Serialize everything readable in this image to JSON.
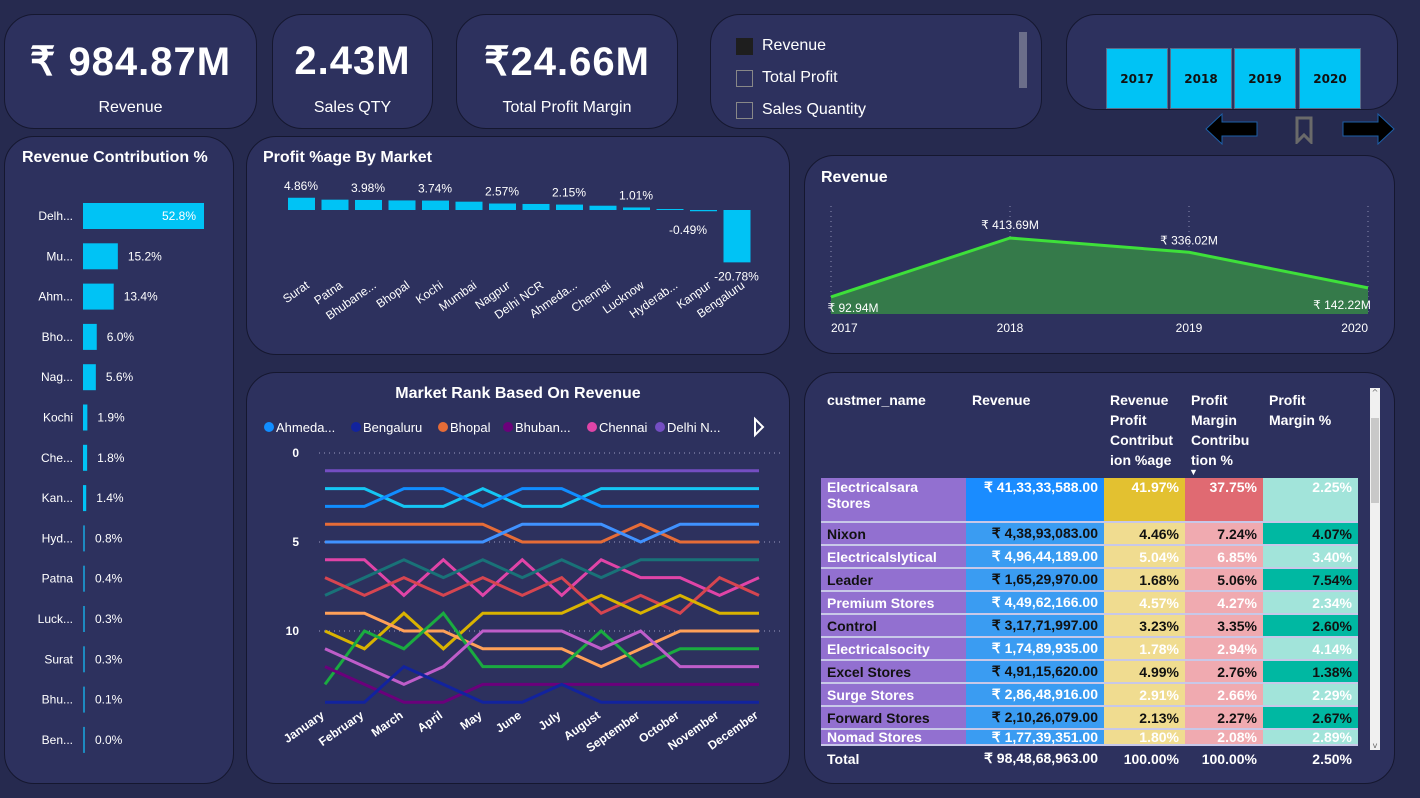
{
  "kpis": [
    {
      "value": "₹ 984.87M",
      "label": "Revenue"
    },
    {
      "value": "2.43M",
      "label": "Sales QTY"
    },
    {
      "value": "₹24.66M",
      "label": "Total Profit Margin"
    }
  ],
  "measure_slicer": {
    "items": [
      {
        "label": "Revenue",
        "checked": true
      },
      {
        "label": "Total Profit",
        "checked": false
      },
      {
        "label": "Sales Quantity",
        "checked": false
      }
    ]
  },
  "year_slicer": {
    "years": [
      "2017",
      "2018",
      "2019",
      "2020"
    ],
    "color": "#00c3f5"
  },
  "nav": {
    "back": "arrow-left-icon",
    "bookmark": "bookmark-icon",
    "forward": "arrow-right-icon"
  },
  "chart_data": [
    {
      "type": "bar",
      "orientation": "horizontal",
      "title": "Revenue Contribution %",
      "categories": [
        "Delh...",
        "Mu...",
        "Ahm...",
        "Bho...",
        "Nag...",
        "Kochi",
        "Che...",
        "Kan...",
        "Hyd...",
        "Patna",
        "Luck...",
        "Surat",
        "Bhu...",
        "Ben..."
      ],
      "values": [
        52.8,
        15.2,
        13.4,
        6.0,
        5.6,
        1.9,
        1.8,
        1.4,
        0.8,
        0.4,
        0.3,
        0.3,
        0.1,
        0.0
      ],
      "labels": [
        "52.8%",
        "15.2%",
        "13.4%",
        "6.0%",
        "5.6%",
        "1.9%",
        "1.8%",
        "1.4%",
        "0.8%",
        "0.4%",
        "0.3%",
        "0.3%",
        "0.1%",
        "0.0%"
      ],
      "color": "#00c3f5"
    },
    {
      "type": "bar",
      "title": "Profit %age By Market",
      "categories": [
        "Surat",
        "Patna",
        "Bhubane...",
        "Bhopal",
        "Kochi",
        "Mumbai",
        "Nagpur",
        "Delhi NCR",
        "Ahmeda...",
        "Chennai",
        "Lucknow",
        "Hyderab...",
        "Kanpur",
        "Bengaluru"
      ],
      "values": [
        4.86,
        4.1,
        3.98,
        3.8,
        3.74,
        3.3,
        2.57,
        2.4,
        2.15,
        1.7,
        1.01,
        0.4,
        -0.49,
        -20.78
      ],
      "labels": [
        "4.86%",
        "",
        "3.98%",
        "",
        "3.74%",
        "",
        "2.57%",
        "",
        "2.15%",
        "",
        "1.01%",
        "",
        "-0.49%",
        "-20.78%"
      ],
      "color": "#00c3f5"
    },
    {
      "type": "area",
      "title": "Revenue",
      "categories": [
        "2017",
        "2018",
        "2019",
        "2020"
      ],
      "values": [
        92.94,
        413.69,
        336.02,
        142.22
      ],
      "labels": [
        "₹ 92.94M",
        "₹ 413.69M",
        "₹ 336.02M",
        "₹ 142.22M"
      ],
      "ylim": [
        0,
        580
      ],
      "line_color": "#3ee03a",
      "fill_color": "#357a4a",
      "grid": "vertical-dotted"
    },
    {
      "type": "line",
      "title": "Market Rank Based On Revenue",
      "categories": [
        "January",
        "February",
        "March",
        "April",
        "May",
        "June",
        "July",
        "August",
        "September",
        "October",
        "November",
        "December"
      ],
      "yticks": [
        "0",
        "5",
        "10"
      ],
      "ylim": [
        0,
        14
      ],
      "y_reversed": true,
      "legend": [
        "Ahmeda...",
        "Bengaluru",
        "Bhopal",
        "Bhuban...",
        "Chennai",
        "Delhi N..."
      ],
      "series": [
        {
          "name": "Delhi NCR",
          "color": "#744ec2",
          "values": [
            1,
            1,
            1,
            1,
            1,
            1,
            1,
            1,
            1,
            1,
            1,
            1
          ]
        },
        {
          "color": "#15c6f4",
          "values": [
            2,
            2,
            3,
            3,
            2,
            3,
            3,
            2,
            2,
            2,
            2,
            2
          ]
        },
        {
          "name": "Ahmedabad",
          "color": "#118dff",
          "values": [
            3,
            3,
            2,
            2,
            3,
            2,
            2,
            3,
            3,
            3,
            3,
            3
          ]
        },
        {
          "name": "Bhopal",
          "color": "#e66c37",
          "values": [
            4,
            4,
            4,
            4,
            4,
            5,
            5,
            5,
            4,
            5,
            5,
            5
          ]
        },
        {
          "color": "#4092ff",
          "values": [
            5,
            5,
            5,
            5,
            5,
            4,
            4,
            4,
            5,
            4,
            4,
            4
          ]
        },
        {
          "name": "Chennai",
          "color": "#e044a7",
          "values": [
            6,
            6,
            8,
            6,
            8,
            6,
            8,
            6,
            7,
            7,
            8,
            7
          ]
        },
        {
          "color": "#197278",
          "values": [
            8,
            7,
            6,
            7,
            6,
            7,
            6,
            7,
            6,
            6,
            6,
            6
          ]
        },
        {
          "color": "#d64550",
          "values": [
            7,
            8,
            7,
            8,
            7,
            8,
            7,
            9,
            8,
            9,
            7,
            8
          ]
        },
        {
          "color": "#d9b300",
          "values": [
            10,
            11,
            9,
            11,
            9,
            9,
            9,
            8,
            9,
            8,
            9,
            9
          ]
        },
        {
          "color": "#ffa058",
          "values": [
            9,
            9,
            10,
            10,
            11,
            11,
            11,
            12,
            11,
            10,
            10,
            10
          ]
        },
        {
          "color": "#1aab40",
          "values": [
            13,
            10,
            11,
            9,
            12,
            12,
            12,
            10,
            12,
            11,
            11,
            11
          ]
        },
        {
          "color": "#be5dc9",
          "values": [
            11,
            12,
            13,
            12,
            10,
            10,
            10,
            11,
            10,
            12,
            12,
            12
          ]
        },
        {
          "name": "Bhubaneshwar",
          "color": "#6b007b",
          "values": [
            12,
            13,
            14,
            14,
            13,
            13,
            13,
            13,
            13,
            13,
            13,
            13
          ]
        },
        {
          "name": "Bengaluru",
          "color": "#12239e",
          "values": [
            14,
            14,
            12,
            13,
            14,
            14,
            13,
            14,
            14,
            14,
            14,
            14
          ]
        }
      ]
    }
  ],
  "table": {
    "columns": [
      "custmer_name",
      "Revenue",
      "Revenue Profit Contribut ion %age",
      "Profit Margin Contribu tion %",
      "Profit Margin %"
    ],
    "sorted_column": "Profit Margin Contribu tion %",
    "rows": [
      [
        "Electricalsara Stores",
        "₹ 41,33,33,588.00",
        "41.97%",
        "37.75%",
        "2.25%"
      ],
      [
        "Nixon",
        "₹ 4,38,93,083.00",
        "4.46%",
        "7.24%",
        "4.07%"
      ],
      [
        "Electricalslytical",
        "₹ 4,96,44,189.00",
        "5.04%",
        "6.85%",
        "3.40%"
      ],
      [
        "Leader",
        "₹ 1,65,29,970.00",
        "1.68%",
        "5.06%",
        "7.54%"
      ],
      [
        "Premium Stores",
        "₹ 4,49,62,166.00",
        "4.57%",
        "4.27%",
        "2.34%"
      ],
      [
        "Control",
        "₹ 3,17,71,997.00",
        "3.23%",
        "3.35%",
        "2.60%"
      ],
      [
        "Electricalsocity",
        "₹ 1,74,89,935.00",
        "1.78%",
        "2.94%",
        "4.14%"
      ],
      [
        "Excel Stores",
        "₹ 4,91,15,620.00",
        "4.99%",
        "2.76%",
        "1.38%"
      ],
      [
        "Surge Stores",
        "₹ 2,86,48,916.00",
        "2.91%",
        "2.66%",
        "2.29%"
      ],
      [
        "Forward Stores",
        "₹ 2,10,26,079.00",
        "2.13%",
        "2.27%",
        "2.67%"
      ],
      [
        "Nomad Stores",
        "₹ 1,77,39,351.00",
        "1.80%",
        "2.08%",
        "2.89%"
      ]
    ],
    "total": [
      "Total",
      "₹ 98,48,68,963.00",
      "100.00%",
      "100.00%",
      "2.50%"
    ]
  }
}
